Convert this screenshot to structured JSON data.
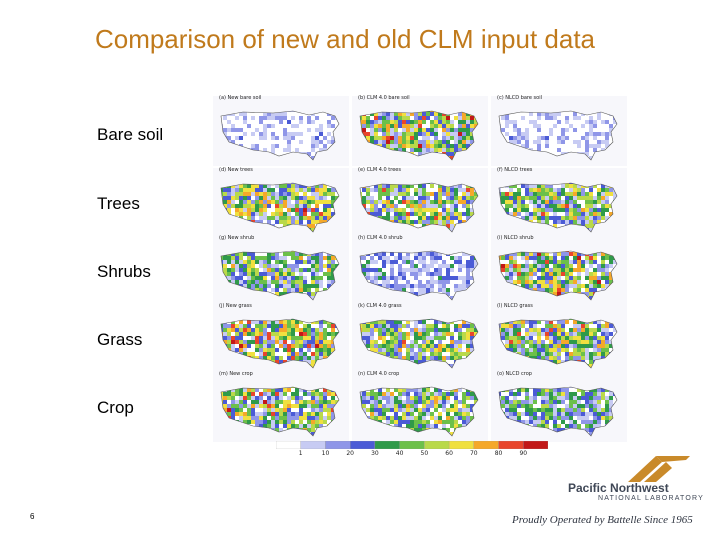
{
  "title": "Comparison of new and old CLM input data",
  "rows": [
    {
      "label": "Bare soil",
      "captions": [
        "(a) New bare soil",
        "(b) CLM 4.0 bare soil",
        "(c) NLCD bare soil"
      ]
    },
    {
      "label": "Trees",
      "captions": [
        "(d) New trees",
        "(e) CLM 4.0 trees",
        "(f) NLCD trees"
      ]
    },
    {
      "label": "Shrubs",
      "captions": [
        "(g) New shrub",
        "(h) CLM 4.0 shrub",
        "(i) NLCD shrub"
      ]
    },
    {
      "label": "Grass",
      "captions": [
        "(j) New grass",
        "(k) CLM 4.0 grass",
        "(l) NLCD grass"
      ]
    },
    {
      "label": "Crop",
      "captions": [
        "(m) New crop",
        "(n) CLM 4.0 crop",
        "(o) NLCD crop"
      ]
    }
  ],
  "colorbar": {
    "labels": [
      "1",
      "10",
      "20",
      "30",
      "40",
      "50",
      "60",
      "70",
      "80",
      "90"
    ],
    "colors": [
      "#ffffff",
      "#c7cbf3",
      "#8f96e8",
      "#4b5bd6",
      "#2f9a4a",
      "#6cc04a",
      "#b9d94a",
      "#f0e040",
      "#f5a82a",
      "#e8452c",
      "#c21818"
    ]
  },
  "intensity": {
    "bare": [
      0.12,
      0.62,
      0.1
    ],
    "trees": [
      0.58,
      0.55,
      0.52
    ],
    "shrubs": [
      0.48,
      0.22,
      0.6
    ],
    "grass": [
      0.62,
      0.52,
      0.55
    ],
    "crop": [
      0.58,
      0.5,
      0.38
    ]
  },
  "slide_number": "6",
  "logo": {
    "name": "Pacific Northwest",
    "subtitle": "NATIONAL LABORATORY",
    "tagline": "Proudly Operated by Battelle Since 1965"
  }
}
